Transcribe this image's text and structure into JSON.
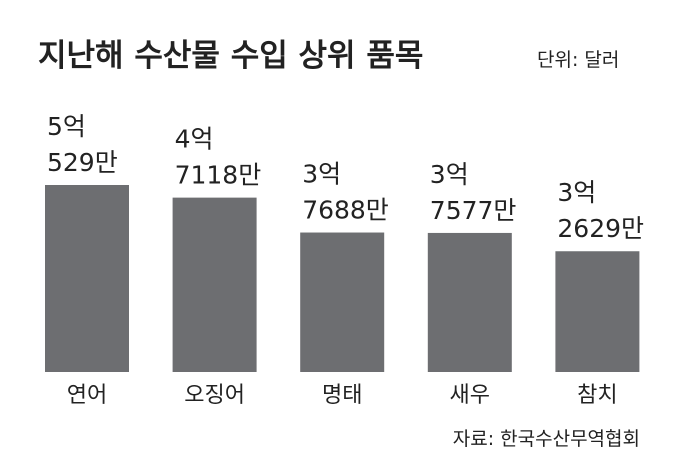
{
  "chart_data": {
    "type": "bar",
    "title": "지난해 수산물 수입 상위 품목",
    "subtitle": "단위: 달러",
    "categories": [
      "연어",
      "오징어",
      "명태",
      "새우",
      "참치"
    ],
    "values": [
      505290000,
      471180000,
      376880000,
      375770000,
      326290000
    ],
    "value_labels": [
      [
        "5억",
        "529만"
      ],
      [
        "4억",
        "7118만"
      ],
      [
        "3억",
        "7688만"
      ],
      [
        "3억",
        "7577만"
      ],
      [
        "3억",
        "2629만"
      ]
    ],
    "color": "#6d6e71",
    "source": "자료: 한국수산무역협회"
  }
}
